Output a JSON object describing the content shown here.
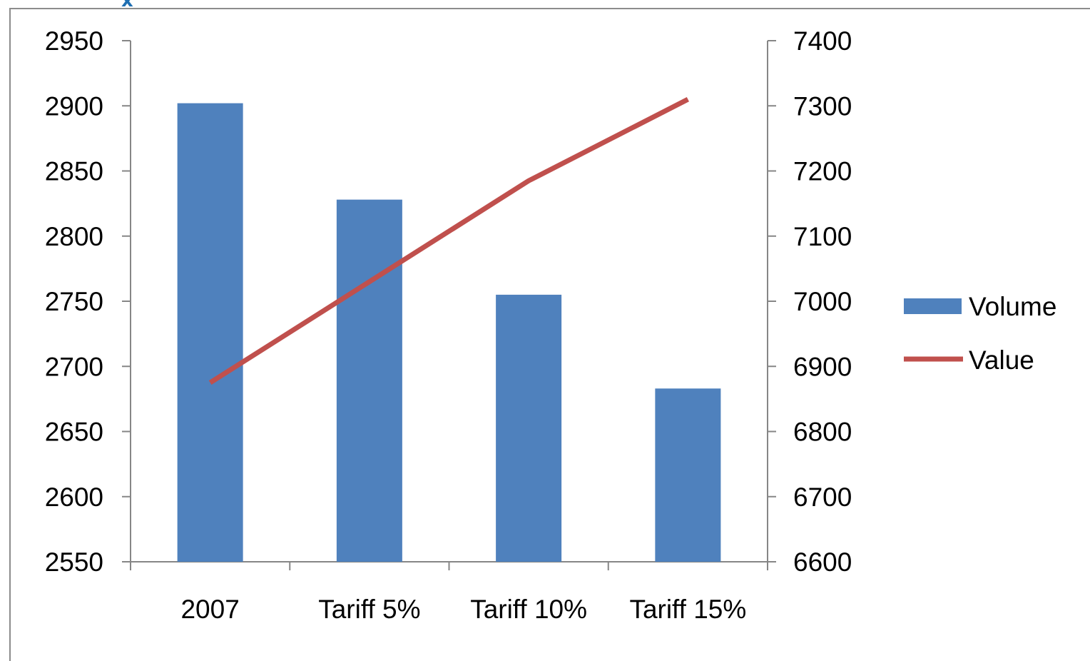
{
  "chart_data": {
    "type": "bar",
    "categories": [
      "2007",
      "Tariff 5%",
      "Tariff 10%",
      "Tariff 15%"
    ],
    "series": [
      {
        "name": "Volume",
        "type": "bar",
        "axis": "left",
        "color": "#4f81bd",
        "values": [
          2902,
          2828,
          2755,
          2683
        ]
      },
      {
        "name": "Value",
        "type": "line",
        "axis": "right",
        "color": "#c0504d",
        "values": [
          6875,
          7030,
          7185,
          7310
        ]
      }
    ],
    "y_left": {
      "ylim": [
        2550,
        2950
      ],
      "ticks": [
        "2950",
        "2900",
        "2850",
        "2800",
        "2750",
        "2700",
        "2650",
        "2600",
        "2550"
      ]
    },
    "y_right": {
      "ylim": [
        6600,
        7400
      ],
      "ticks": [
        "7400",
        "7300",
        "7200",
        "7100",
        "7000",
        "6900",
        "6800",
        "6700",
        "6600"
      ]
    },
    "legend": {
      "placement": "right",
      "entries": [
        "Volume",
        "Value"
      ]
    },
    "grid": false
  },
  "decor": {
    "corner_mark": "x",
    "corner_icon": "close-icon"
  }
}
